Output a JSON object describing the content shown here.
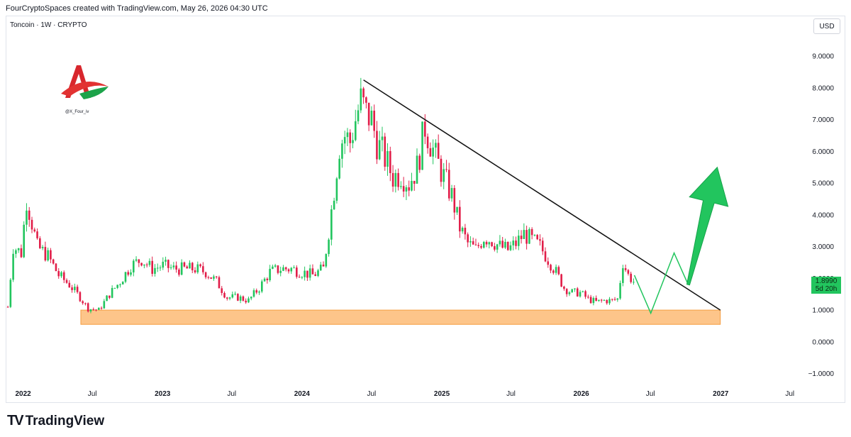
{
  "header": {
    "caption": "FourCryptoSpaces created with TradingView.com, May 26, 2026 04:30 UTC",
    "symbol": "Toncoin · 1W · CRYPTO",
    "currency": "USD"
  },
  "watermark": {
    "handle": "@X_Four_iv"
  },
  "footer": {
    "brand": "TradingView",
    "mark": "TV"
  },
  "price_badge": {
    "price": "1.8990",
    "countdown": "5d 20h"
  },
  "colors": {
    "up": "#22c55e",
    "down": "#e11d48",
    "support_zone": "#fdc58a",
    "trendline": "#111111",
    "arrow": "#22c55e"
  },
  "chart_data": {
    "type": "candlestick",
    "title": "Toncoin · 1W · CRYPTO",
    "currency": "USD",
    "y_ticks": [
      "9.0000",
      "8.0000",
      "7.0000",
      "6.0000",
      "5.0000",
      "4.0000",
      "3.0000",
      "2.0000",
      "1.0000",
      "0.0000",
      "−1.0000"
    ],
    "ylim": [
      -1.3,
      10.1
    ],
    "x_ticks": [
      {
        "label": "2022",
        "date": "2022-01-01",
        "bold": true
      },
      {
        "label": "Jul",
        "date": "2022-07-01",
        "bold": false
      },
      {
        "label": "2023",
        "date": "2023-01-01",
        "bold": true
      },
      {
        "label": "Jul",
        "date": "2023-07-01",
        "bold": false
      },
      {
        "label": "2024",
        "date": "2024-01-01",
        "bold": true
      },
      {
        "label": "Jul",
        "date": "2024-07-01",
        "bold": false
      },
      {
        "label": "2025",
        "date": "2025-01-01",
        "bold": true
      },
      {
        "label": "Jul",
        "date": "2025-07-01",
        "bold": false
      },
      {
        "label": "2026",
        "date": "2026-01-01",
        "bold": true
      },
      {
        "label": "Jul",
        "date": "2026-07-01",
        "bold": false
      },
      {
        "label": "2027",
        "date": "2027-01-01",
        "bold": true
      },
      {
        "label": "Jul",
        "date": "2027-07-01",
        "bold": false
      }
    ],
    "xlim": [
      "2021-11-20",
      "2027-08-15"
    ],
    "price_path": [
      [
        "2021-11-22",
        1.1
      ],
      [
        "2021-12-06",
        3.0
      ],
      [
        "2021-12-27",
        2.8
      ],
      [
        "2022-01-10",
        4.5
      ],
      [
        "2022-02-07",
        3.0
      ],
      [
        "2022-03-07",
        2.7
      ],
      [
        "2022-04-04",
        2.1
      ],
      [
        "2022-05-02",
        1.8
      ],
      [
        "2022-05-30",
        1.4
      ],
      [
        "2022-06-20",
        1.05
      ],
      [
        "2022-07-18",
        1.0
      ],
      [
        "2022-08-15",
        1.5
      ],
      [
        "2022-09-12",
        1.9
      ],
      [
        "2022-10-10",
        2.4
      ],
      [
        "2022-11-07",
        2.6
      ],
      [
        "2022-12-05",
        2.3
      ],
      [
        "2023-01-02",
        2.4
      ],
      [
        "2023-01-30",
        2.3
      ],
      [
        "2023-02-27",
        2.3
      ],
      [
        "2023-03-27",
        2.3
      ],
      [
        "2023-04-24",
        2.2
      ],
      [
        "2023-05-22",
        1.9
      ],
      [
        "2023-06-19",
        1.4
      ],
      [
        "2023-07-17",
        1.4
      ],
      [
        "2023-08-14",
        1.3
      ],
      [
        "2023-09-11",
        1.7
      ],
      [
        "2023-10-09",
        2.2
      ],
      [
        "2023-11-06",
        2.3
      ],
      [
        "2023-12-04",
        2.3
      ],
      [
        "2024-01-01",
        2.2
      ],
      [
        "2024-01-29",
        2.1
      ],
      [
        "2024-02-26",
        2.3
      ],
      [
        "2024-03-11",
        3.5
      ],
      [
        "2024-03-25",
        4.8
      ],
      [
        "2024-04-08",
        6.2
      ],
      [
        "2024-04-22",
        6.5
      ],
      [
        "2024-05-06",
        6.3
      ],
      [
        "2024-05-20",
        7.0
      ],
      [
        "2024-06-03",
        7.6
      ],
      [
        "2024-06-17",
        7.2
      ],
      [
        "2024-07-01",
        7.0
      ],
      [
        "2024-07-15",
        6.3
      ],
      [
        "2024-08-05",
        5.8
      ],
      [
        "2024-08-26",
        5.2
      ],
      [
        "2024-09-16",
        5.3
      ],
      [
        "2024-10-07",
        5.0
      ],
      [
        "2024-10-28",
        5.5
      ],
      [
        "2024-11-18",
        6.8
      ],
      [
        "2024-12-02",
        6.3
      ],
      [
        "2024-12-16",
        5.8
      ],
      [
        "2025-01-06",
        5.2
      ],
      [
        "2025-01-27",
        4.6
      ],
      [
        "2025-02-17",
        3.6
      ],
      [
        "2025-03-10",
        3.1
      ],
      [
        "2025-03-31",
        2.9
      ],
      [
        "2025-04-21",
        3.3
      ],
      [
        "2025-05-12",
        3.2
      ],
      [
        "2025-06-02",
        3.0
      ],
      [
        "2025-06-23",
        2.9
      ],
      [
        "2025-07-14",
        3.1
      ],
      [
        "2025-08-04",
        3.4
      ],
      [
        "2025-08-25",
        3.2
      ],
      [
        "2025-09-15",
        3.0
      ],
      [
        "2025-10-06",
        2.6
      ],
      [
        "2025-10-27",
        2.2
      ],
      [
        "2025-11-17",
        1.7
      ],
      [
        "2025-12-08",
        1.55
      ],
      [
        "2025-12-29",
        1.55
      ],
      [
        "2026-01-19",
        1.35
      ],
      [
        "2026-02-09",
        1.25
      ],
      [
        "2026-03-02",
        1.3
      ],
      [
        "2026-03-23",
        1.3
      ],
      [
        "2026-04-06",
        1.35
      ],
      [
        "2026-04-20",
        2.5
      ],
      [
        "2026-05-04",
        2.1
      ],
      [
        "2026-05-18",
        1.9
      ]
    ],
    "trendline": [
      [
        "2024-06-10",
        8.25
      ],
      [
        "2026-12-31",
        1.0
      ]
    ],
    "support_zone": {
      "x0": "2022-06-01",
      "x1": "2026-12-31",
      "y0": 0.55,
      "y1": 1.0
    },
    "projection": [
      [
        "2026-05-20",
        2.1
      ],
      [
        "2026-07-02",
        0.9
      ],
      [
        "2026-09-01",
        2.8
      ],
      [
        "2026-10-08",
        1.8
      ]
    ],
    "arrow": {
      "from": [
        "2026-10-08",
        1.8
      ],
      "to": [
        "2026-12-23",
        5.5
      ]
    },
    "last_price": 1.899,
    "grid": false
  }
}
